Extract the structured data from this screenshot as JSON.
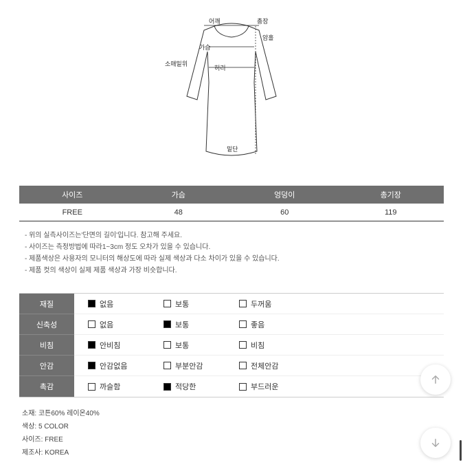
{
  "diagram": {
    "labels": {
      "shoulder": "어깨",
      "total_length": "총장",
      "armhole": "암홀",
      "chest": "가슴",
      "sleeve_hem": "소매밑위",
      "waist": "허리",
      "hem": "밑단"
    },
    "stroke_color": "#333333",
    "guide_color": "#222222"
  },
  "size_table": {
    "columns": [
      "사이즈",
      "가슴",
      "엉덩이",
      "총기장"
    ],
    "rows": [
      [
        "FREE",
        "48",
        "60",
        "119"
      ]
    ],
    "header_bg": "#6f6f6f",
    "header_text_color": "#ffffff"
  },
  "notes": [
    "- 위의 실측사이즈는'단면의 길이'입니다. 참고해 주세요.",
    "- 사이즈는 측정방법에 따라1~3cm 정도 오차가 있을 수 있습니다.",
    "- 제품색상은 사용자의 모니터의 해상도에 따라 실제 색상과 다소 차이가 있을 수 있습니다.",
    "- 제품 컷의 색상이 실제 제품 색상과 가장 비슷합니다."
  ],
  "attributes": [
    {
      "label": "재질",
      "options": [
        {
          "text": "없음",
          "checked": true
        },
        {
          "text": "보통",
          "checked": false
        },
        {
          "text": "두꺼움",
          "checked": false
        }
      ]
    },
    {
      "label": "신축성",
      "options": [
        {
          "text": "없음",
          "checked": false
        },
        {
          "text": "보통",
          "checked": true
        },
        {
          "text": "좋음",
          "checked": false
        }
      ]
    },
    {
      "label": "비침",
      "options": [
        {
          "text": "안비침",
          "checked": true
        },
        {
          "text": "보통",
          "checked": false
        },
        {
          "text": "비침",
          "checked": false
        }
      ]
    },
    {
      "label": "안감",
      "options": [
        {
          "text": "안감없음",
          "checked": true
        },
        {
          "text": "부분안감",
          "checked": false
        },
        {
          "text": "전체안감",
          "checked": false
        }
      ]
    },
    {
      "label": "촉감",
      "options": [
        {
          "text": "까슬함",
          "checked": false
        },
        {
          "text": "적당한",
          "checked": true
        },
        {
          "text": "부드러운",
          "checked": false
        }
      ]
    }
  ],
  "details": [
    "소재: 코튼60% 레이온40%",
    "색상: 5 COLOR",
    "사이즈: FREE",
    "제조사: KOREA"
  ],
  "colors": {
    "page_bg": "#ffffff",
    "attr_label_bg": "#6f6f6f",
    "text": "#333333"
  }
}
